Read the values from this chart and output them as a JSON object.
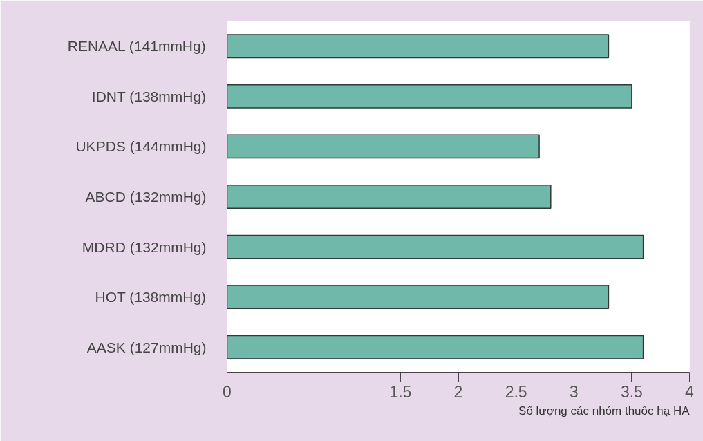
{
  "chart_data": {
    "type": "bar",
    "orientation": "horizontal",
    "xlabel": "Số lượng các nhóm thuốc hạ HA",
    "categories": [
      "RENAAL (141mmHg)",
      "IDNT (138mmHg)",
      "UKPDS (144mmHg)",
      "ABCD (132mmHg)",
      "MDRD (132mmHg)",
      "HOT (138mmHg)",
      "AASK (127mmHg)"
    ],
    "values": [
      3.3,
      3.5,
      2.7,
      2.8,
      3.6,
      3.3,
      3.6
    ],
    "color": "#70b8a9",
    "xlim": [
      0,
      4
    ],
    "xticks": [
      0,
      1.5,
      2,
      2.5,
      3,
      3.5,
      4
    ],
    "grid": false
  }
}
